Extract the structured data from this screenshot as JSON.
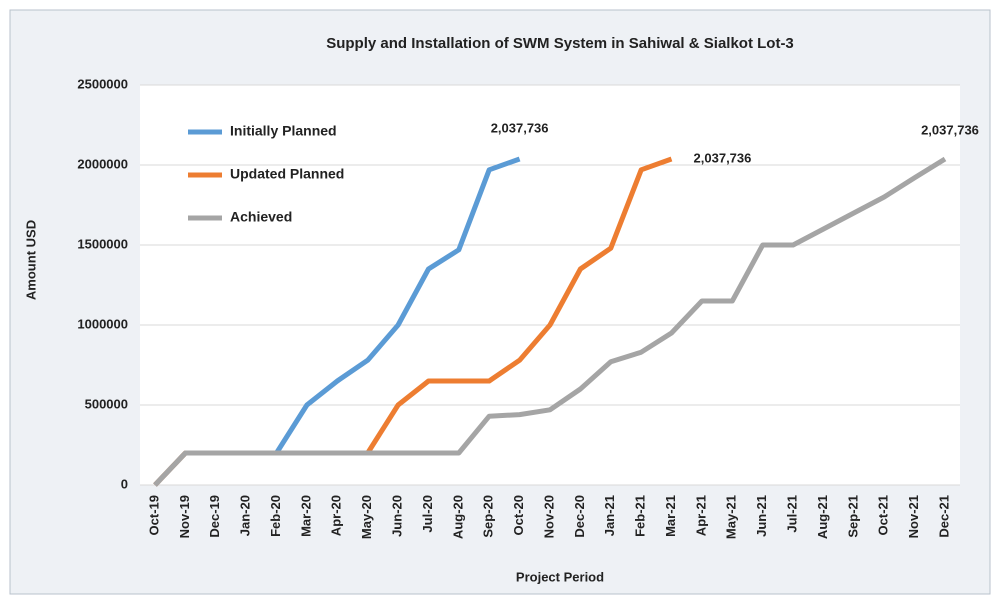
{
  "chart_data": {
    "type": "line",
    "title": "Supply and Installation of SWM System in Sahiwal & Sialkot Lot-3",
    "x_label": "Project Period",
    "y_label": "Amount USD",
    "categories": [
      "Oct-19",
      "Nov-19",
      "Dec-19",
      "Jan-20",
      "Feb-20",
      "Mar-20",
      "Apr-20",
      "May-20",
      "Jun-20",
      "Jul-20",
      "Aug-20",
      "Sep-20",
      "Oct-20",
      "Nov-20",
      "Dec-20",
      "Jan-21",
      "Feb-21",
      "Mar-21",
      "Apr-21",
      "May-21",
      "Jun-21",
      "Jul-21",
      "Aug-21",
      "Sep-21",
      "Oct-21",
      "Nov-21",
      "Dec-21"
    ],
    "ylim": [
      0,
      2500000
    ],
    "yticks": [
      0,
      500000,
      1000000,
      1500000,
      2000000,
      2500000
    ],
    "grid": true,
    "legend": "upper left",
    "series": [
      {
        "name": "Initially Planned",
        "color": "#5b9bd5",
        "values": [
          0,
          200000,
          200000,
          200000,
          200000,
          500000,
          650000,
          780000,
          1000000,
          1350000,
          1470000,
          1970000,
          2037736,
          null,
          null,
          null,
          null,
          null,
          null,
          null,
          null,
          null,
          null,
          null,
          null,
          null,
          null
        ],
        "value_labels": [
          null,
          null,
          null,
          null,
          null,
          null,
          null,
          null,
          null,
          null,
          null,
          null,
          "2,037,736",
          null,
          null,
          null,
          null,
          null,
          null,
          null,
          null,
          null,
          null,
          null,
          null,
          null,
          null
        ]
      },
      {
        "name": "Updated Planned",
        "color": "#ed7d31",
        "values": [
          0,
          200000,
          200000,
          200000,
          200000,
          200000,
          200000,
          200000,
          500000,
          650000,
          650000,
          650000,
          780000,
          1000000,
          1350000,
          1480000,
          1970000,
          2037736,
          null,
          null,
          null,
          null,
          null,
          null,
          null,
          null,
          null
        ],
        "value_labels": [
          null,
          null,
          null,
          null,
          null,
          null,
          null,
          null,
          null,
          null,
          null,
          null,
          null,
          null,
          null,
          null,
          null,
          "2,037,736",
          null,
          null,
          null,
          null,
          null,
          null,
          null,
          null,
          null
        ]
      },
      {
        "name": "Achieved",
        "color": "#a5a5a5",
        "values": [
          0,
          200000,
          200000,
          200000,
          200000,
          200000,
          200000,
          200000,
          200000,
          200000,
          200000,
          430000,
          440000,
          470000,
          600000,
          770000,
          830000,
          950000,
          1150000,
          1150000,
          1500000,
          1500000,
          1600000,
          1700000,
          1800000,
          1920000,
          2037736
        ],
        "value_labels": [
          null,
          null,
          null,
          null,
          null,
          null,
          null,
          null,
          null,
          null,
          null,
          null,
          null,
          null,
          null,
          null,
          null,
          null,
          null,
          null,
          null,
          null,
          null,
          null,
          null,
          null,
          "2,037,736"
        ]
      }
    ]
  }
}
